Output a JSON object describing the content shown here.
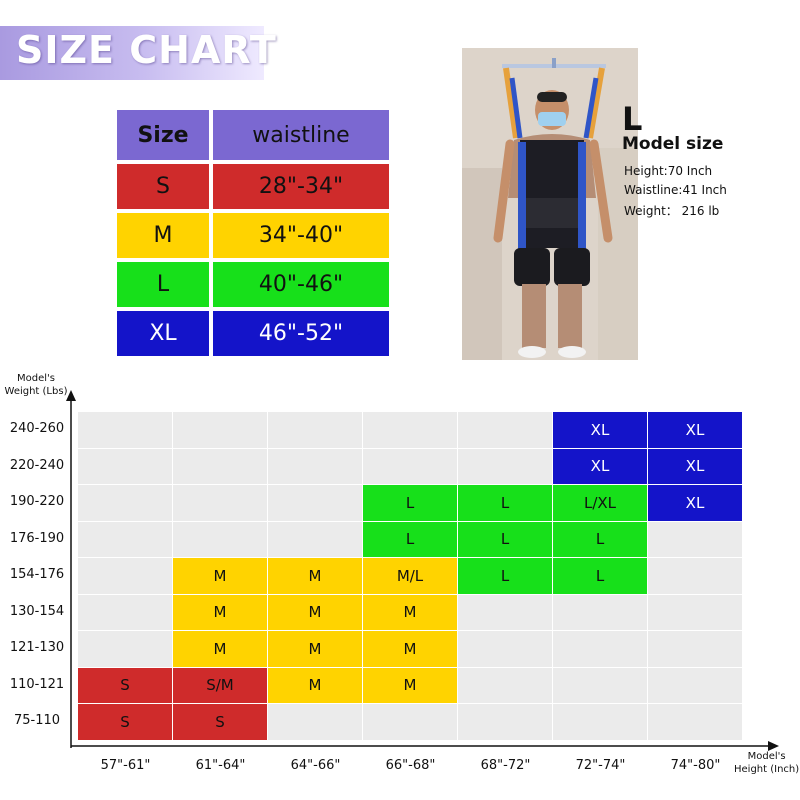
{
  "banner": {
    "title": "SIZE CHART"
  },
  "waist_table": {
    "header": {
      "size": "Size",
      "value": "waistline"
    },
    "rows": [
      {
        "size": "S",
        "value": "28\"-34\"",
        "color": "#cf2b2b"
      },
      {
        "size": "M",
        "value": "34\"-40\"",
        "color": "#ffd300"
      },
      {
        "size": "L",
        "value": "40\"-46\"",
        "color": "#17e01a"
      },
      {
        "size": "XL",
        "value": "46\"-52\"",
        "color": "#1414c9"
      }
    ],
    "header_color": "#7b68d1"
  },
  "model": {
    "size": "L",
    "title": "Model size",
    "height": "Height:70 Inch",
    "waistline": "Waistline:41 Inch",
    "weight": "Weight： 216 lb"
  },
  "grid": {
    "y_axis_label_line1": "Model's",
    "y_axis_label_line2": "Weight (Lbs)",
    "x_axis_label_line1": "Model's",
    "x_axis_label_line2": "Height (Inch)",
    "weights": [
      "240-260",
      "220-240",
      "190-220",
      "176-190",
      "154-176",
      "130-154",
      "121-130",
      "110-121",
      "75-110"
    ],
    "heights": [
      "57\"-61\"",
      "61\"-64\"",
      "64\"-66\"",
      "66\"-68\"",
      "68\"-72\"",
      "72\"-74\"",
      "74\"-80\""
    ],
    "cells": [
      [
        "",
        "",
        "",
        "",
        "",
        "XL",
        "XL"
      ],
      [
        "",
        "",
        "",
        "",
        "",
        "XL",
        "XL"
      ],
      [
        "",
        "",
        "",
        "L",
        "L",
        "L/XL",
        "XL"
      ],
      [
        "",
        "",
        "",
        "L",
        "L",
        "L",
        ""
      ],
      [
        "",
        "M",
        "M",
        "M/L",
        "L",
        "L",
        ""
      ],
      [
        "",
        "M",
        "M",
        "M",
        "",
        "",
        ""
      ],
      [
        "",
        "M",
        "M",
        "M",
        "",
        "",
        ""
      ],
      [
        "S",
        "S/M",
        "M",
        "M",
        "",
        "",
        ""
      ],
      [
        "S",
        "S",
        "",
        "",
        "",
        "",
        ""
      ]
    ],
    "colors": {
      "S": "#cf2b2b",
      "S/M": "#cf2b2b",
      "M": "#ffd300",
      "M/L": "#ffd300",
      "L": "#17e01a",
      "L/XL": "#17e01a",
      "XL": "#1414c9",
      "empty": "#ebebeb"
    }
  }
}
